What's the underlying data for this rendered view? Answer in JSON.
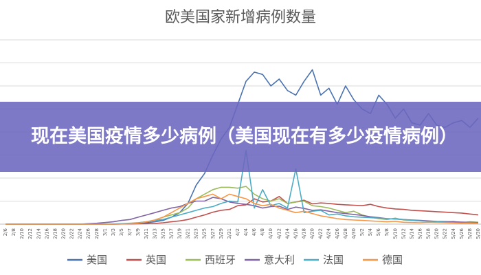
{
  "banner": {
    "text": "现在美国疫情多少病例（美国现在有多少疫情病例）"
  },
  "chart_data": {
    "type": "line",
    "title": "欧美国家新增病例数量",
    "xlabel": "",
    "ylabel": "",
    "grid": true,
    "legend_position": "bottom",
    "x": [
      "2/6",
      "2/8",
      "2/10",
      "2/12",
      "2/14",
      "2/16",
      "2/18",
      "2/20",
      "2/22",
      "2/24",
      "2/26",
      "2/28",
      "3/1",
      "3/3",
      "3/5",
      "3/7",
      "3/9",
      "3/11",
      "3/13",
      "3/15",
      "3/17",
      "3/19",
      "3/21",
      "3/23",
      "3/25",
      "3/27",
      "3/29",
      "3/31",
      "4/2",
      "4/4",
      "4/6",
      "4/8",
      "4/10",
      "4/12",
      "4/14",
      "4/16",
      "4/18",
      "4/20",
      "4/22",
      "4/24",
      "4/26",
      "4/28",
      "4/30",
      "5/2",
      "5/4",
      "5/6",
      "5/8",
      "5/10",
      "5/12",
      "5/14",
      "5/16",
      "5/18",
      "5/20",
      "5/22",
      "5/24",
      "5/26",
      "5/28",
      "5/30"
    ],
    "y_range": [
      0,
      40000
    ],
    "series": [
      {
        "name": "美国",
        "color": "#4a72b0",
        "values": [
          0,
          0,
          0,
          0,
          0,
          0,
          0,
          0,
          0,
          0,
          0,
          0,
          10,
          20,
          50,
          100,
          200,
          300,
          500,
          800,
          1500,
          2500,
          4500,
          8500,
          11000,
          15000,
          18500,
          21000,
          26000,
          31000,
          33000,
          32500,
          30000,
          31500,
          29000,
          28000,
          31000,
          33500,
          28000,
          29500,
          26000,
          30000,
          27000,
          25000,
          24000,
          28000,
          26000,
          23000,
          25000,
          22000,
          21500,
          24000,
          21500,
          21000,
          22000,
          22500,
          21000,
          23000
        ]
      },
      {
        "name": "英国",
        "color": "#c0504d",
        "values": [
          0,
          0,
          0,
          0,
          0,
          0,
          0,
          0,
          0,
          0,
          0,
          0,
          0,
          0,
          30,
          50,
          80,
          100,
          150,
          300,
          500,
          700,
          1000,
          1500,
          2000,
          2600,
          3000,
          3200,
          4000,
          4200,
          5500,
          4800,
          5000,
          6000,
          4500,
          4800,
          5200,
          4400,
          4600,
          4500,
          4300,
          4200,
          4100,
          4000,
          4300,
          3800,
          3500,
          3300,
          3200,
          3000,
          2900,
          2800,
          2700,
          2600,
          2500,
          2400,
          2200,
          2000
        ]
      },
      {
        "name": "西班牙",
        "color": "#9bbb59",
        "values": [
          0,
          0,
          0,
          0,
          0,
          0,
          0,
          0,
          0,
          0,
          0,
          0,
          10,
          30,
          60,
          150,
          300,
          500,
          900,
          1500,
          2000,
          2500,
          3500,
          5500,
          6500,
          7500,
          8000,
          8000,
          7800,
          8200,
          6500,
          5500,
          5000,
          5500,
          4500,
          4800,
          5000,
          4000,
          3800,
          3500,
          3000,
          2500,
          2800,
          2000,
          1500,
          1200,
          1000,
          1300,
          900,
          800,
          700,
          600,
          500,
          400,
          600,
          300,
          500,
          400
        ]
      },
      {
        "name": "意大利",
        "color": "#8064a2",
        "values": [
          0,
          0,
          0,
          0,
          0,
          0,
          0,
          0,
          0,
          0,
          100,
          200,
          350,
          500,
          800,
          1000,
          1500,
          2000,
          2500,
          3000,
          3500,
          3800,
          4500,
          5000,
          5000,
          5800,
          5500,
          4800,
          4500,
          4300,
          4000,
          3500,
          3800,
          3900,
          3200,
          3700,
          3400,
          3000,
          3100,
          2800,
          2500,
          2300,
          2100,
          1900,
          1600,
          1400,
          1200,
          1100,
          1000,
          900,
          800,
          700,
          600,
          550,
          500,
          450,
          400,
          350
        ]
      },
      {
        "name": "法国",
        "color": "#4bacc6",
        "values": [
          0,
          0,
          0,
          0,
          0,
          0,
          0,
          0,
          0,
          0,
          0,
          0,
          20,
          50,
          100,
          200,
          300,
          500,
          800,
          1000,
          1500,
          2000,
          2500,
          3000,
          3500,
          3800,
          4500,
          5000,
          4800,
          16000,
          3500,
          7500,
          4000,
          4500,
          3500,
          12000,
          2500,
          2800,
          3000,
          2000,
          2200,
          1800,
          1600,
          1500,
          1400,
          1300,
          1200,
          1100,
          1000,
          800,
          700,
          600,
          500,
          400,
          300,
          250,
          200,
          150
        ]
      },
      {
        "name": "德国",
        "color": "#f79646",
        "values": [
          0,
          0,
          0,
          0,
          0,
          0,
          0,
          0,
          0,
          0,
          0,
          0,
          20,
          30,
          50,
          100,
          200,
          500,
          900,
          1500,
          2500,
          3500,
          4500,
          5500,
          6000,
          6500,
          5500,
          6500,
          6000,
          5500,
          4500,
          4000,
          4300,
          3500,
          3000,
          2500,
          2800,
          2300,
          1800,
          1500,
          1200,
          1000,
          900,
          800,
          700,
          600,
          500,
          600,
          400,
          350,
          300,
          400,
          350,
          300,
          250,
          200,
          250,
          200
        ]
      }
    ]
  }
}
